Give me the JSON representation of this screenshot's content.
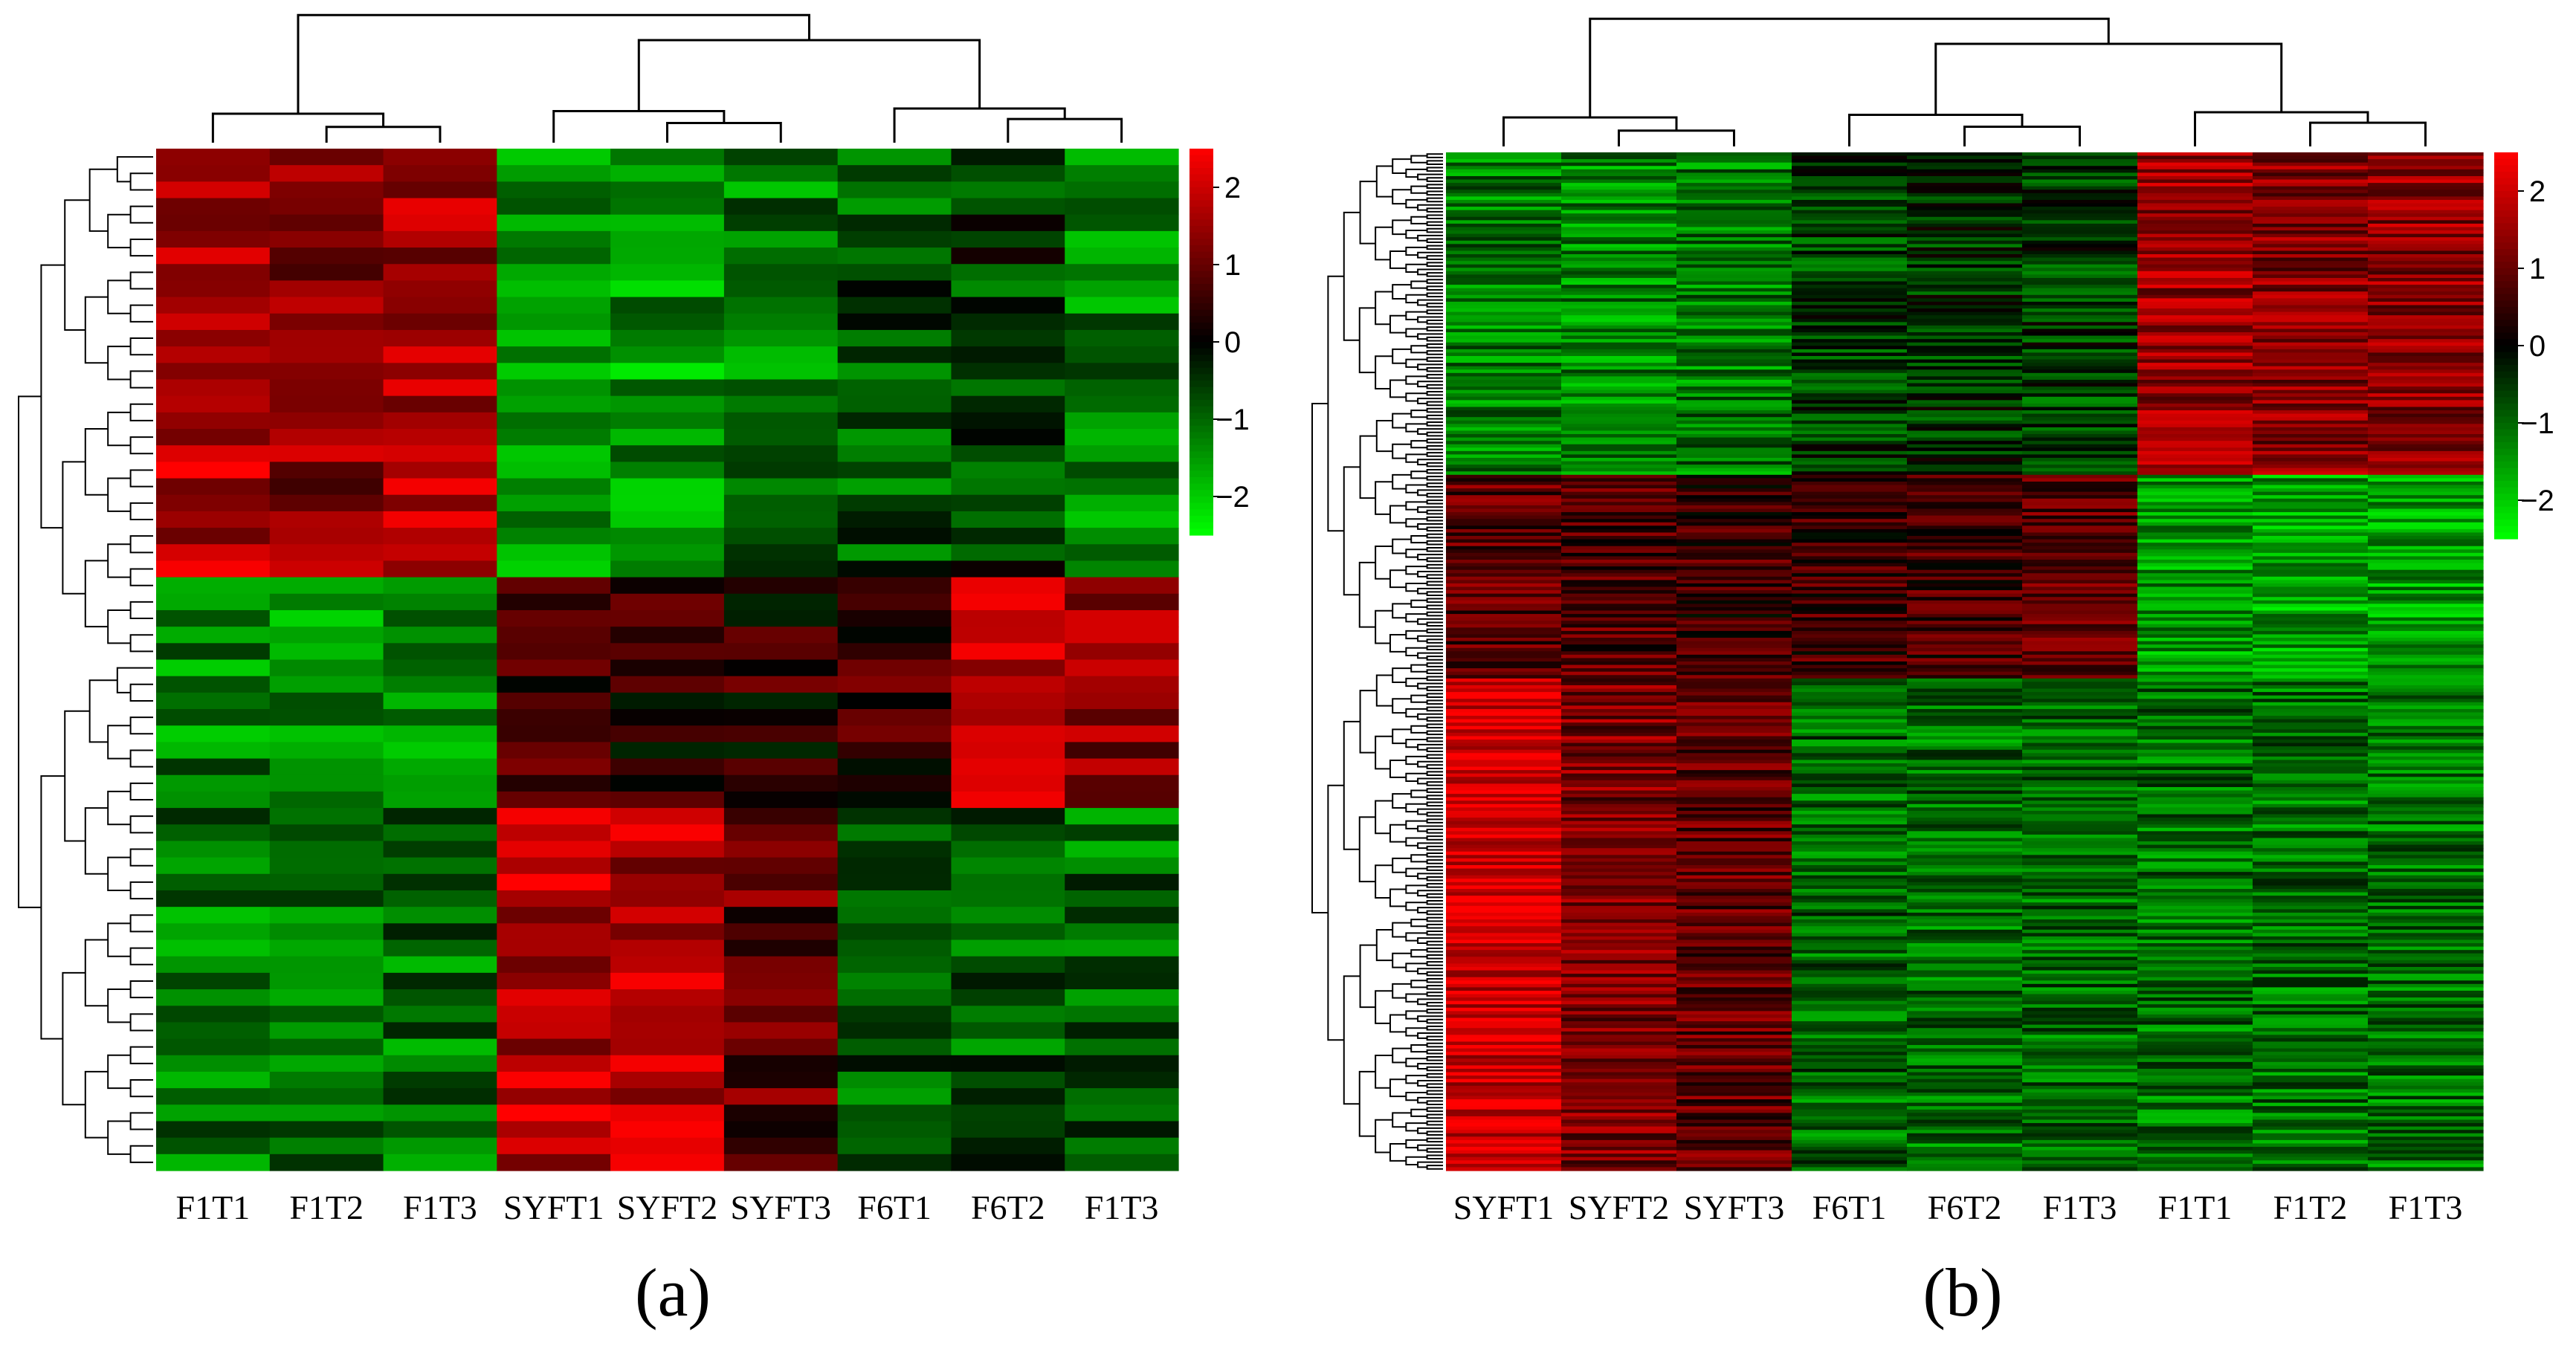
{
  "colors": {
    "low": "#00ff00",
    "mid": "#000000",
    "high": "#ff0000"
  },
  "chart_data": [
    {
      "type": "heatmap",
      "panel_label": "(a)",
      "columns": [
        "F1T1",
        "F1T2",
        "F1T3",
        "SYFT1",
        "SYFT2",
        "SYFT3",
        "F6T1",
        "F6T2",
        "F1T3"
      ],
      "color_scale": {
        "min": -2.5,
        "max": 2.5,
        "ticks": [
          2,
          1,
          0,
          -1,
          -2
        ],
        "tick_labels": [
          "2",
          "1",
          "0",
          "−1",
          "−2"
        ]
      },
      "row_count": 62,
      "column_dendrogram": true,
      "row_dendrogram": true,
      "row_blocks": [
        {
          "rows": 26,
          "values": [
            1.8,
            1.4,
            1.6,
            -1.3,
            -1.5,
            -1.2,
            -0.8,
            -0.6,
            -1.2
          ]
        },
        {
          "rows": 14,
          "values": [
            -1.3,
            -1.4,
            -1.5,
            0.7,
            0.3,
            0.4,
            0.6,
            1.9,
            1.3
          ]
        },
        {
          "rows": 22,
          "values": [
            -1.1,
            -1.2,
            -1.1,
            1.8,
            1.7,
            0.9,
            -0.9,
            -0.9,
            -1.0
          ]
        }
      ]
    },
    {
      "type": "heatmap",
      "panel_label": "(b)",
      "columns": [
        "SYFT1",
        "SYFT2",
        "SYFT3",
        "F6T1",
        "F6T2",
        "F1T3",
        "F1T1",
        "F1T2",
        "F1T3"
      ],
      "color_scale": {
        "min": -2.5,
        "max": 2.5,
        "ticks": [
          2,
          1,
          0,
          -1,
          -2
        ],
        "tick_labels": [
          "2",
          "1",
          "0",
          "−1",
          "−2"
        ]
      },
      "row_count": 300,
      "column_dendrogram": true,
      "row_dendrogram": true,
      "row_blocks": [
        {
          "rows": 95,
          "values": [
            -1.2,
            -1.3,
            -1.2,
            -0.6,
            -0.5,
            -0.6,
            1.5,
            1.3,
            1.4
          ]
        },
        {
          "rows": 60,
          "values": [
            0.9,
            0.8,
            0.6,
            0.6,
            0.7,
            0.8,
            -1.5,
            -1.6,
            -1.5
          ]
        },
        {
          "rows": 145,
          "values": [
            2.0,
            1.2,
            0.9,
            -1.0,
            -1.1,
            -1.0,
            -1.1,
            -1.1,
            -1.1
          ]
        }
      ]
    }
  ]
}
